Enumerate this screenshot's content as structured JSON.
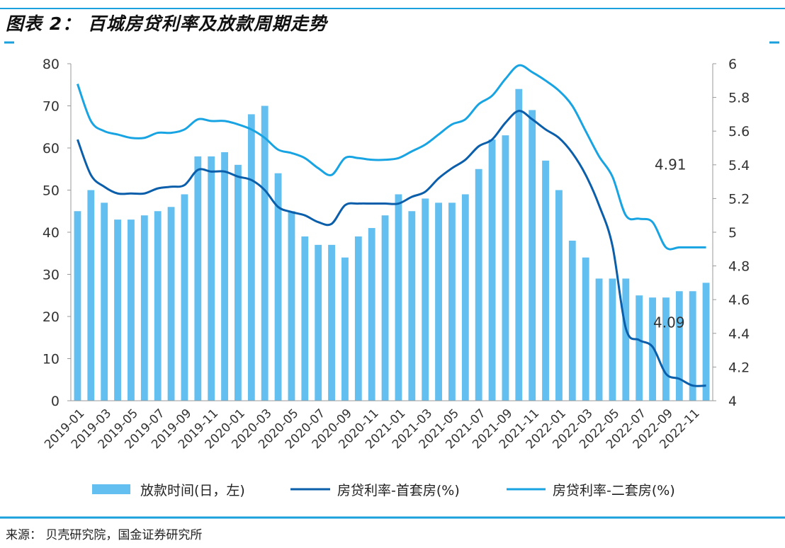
{
  "title": "图表 2：  百城房贷利率及放款周期走势",
  "source": "来源：  贝壳研究院，国金证券研究所",
  "colors": {
    "bar": "#62bff0",
    "first_home": "#0a5eaa",
    "second_home": "#18a4e2",
    "accent_rule": "#1aa0dc"
  },
  "chart_data": {
    "type": "bar",
    "title": "",
    "categories": [
      "2019-01",
      "2019-02",
      "2019-03",
      "2019-04",
      "2019-05",
      "2019-06",
      "2019-07",
      "2019-08",
      "2019-09",
      "2019-10",
      "2019-11",
      "2019-12",
      "2020-01",
      "2020-02",
      "2020-03",
      "2020-04",
      "2020-05",
      "2020-06",
      "2020-07",
      "2020-08",
      "2020-09",
      "2020-10",
      "2020-11",
      "2020-12",
      "2021-01",
      "2021-02",
      "2021-03",
      "2021-04",
      "2021-05",
      "2021-06",
      "2021-07",
      "2021-08",
      "2021-09",
      "2021-10",
      "2021-11",
      "2021-12",
      "2022-01",
      "2022-02",
      "2022-03",
      "2022-04",
      "2022-05",
      "2022-06",
      "2022-07",
      "2022-08",
      "2022-09",
      "2022-10",
      "2022-11",
      "2022-12"
    ],
    "x_tick_labels": [
      "2019-01",
      "2019-03",
      "2019-05",
      "2019-07",
      "2019-09",
      "2019-11",
      "2020-01",
      "2020-03",
      "2020-05",
      "2020-07",
      "2020-09",
      "2020-11",
      "2021-01",
      "2021-03",
      "2021-05",
      "2021-07",
      "2021-09",
      "2021-11",
      "2022-01",
      "2022-03",
      "2022-05",
      "2022-07",
      "2022-09",
      "2022-11"
    ],
    "y_left": {
      "lim": [
        0,
        80
      ],
      "ticks": [
        "0",
        "10",
        "20",
        "30",
        "40",
        "50",
        "60",
        "70",
        "80"
      ]
    },
    "y_right": {
      "lim": [
        4,
        6
      ],
      "ticks": [
        "4",
        "4.2",
        "4.4",
        "4.6",
        "4.8",
        "5",
        "5.2",
        "5.4",
        "5.6",
        "5.8",
        "6"
      ]
    },
    "series": [
      {
        "name": "放款时间(日，左)",
        "type": "bar",
        "axis": "left",
        "values": [
          45,
          50,
          47,
          43,
          43,
          44,
          45,
          46,
          49,
          58,
          58,
          59,
          56,
          68,
          70,
          54,
          45,
          39,
          37,
          37,
          34,
          39,
          41,
          44,
          49,
          45,
          48,
          47,
          47,
          49,
          55,
          62,
          63,
          74,
          69,
          57,
          50,
          38,
          34,
          29,
          29,
          29,
          25,
          24.5,
          24.5,
          26,
          26,
          28
        ]
      },
      {
        "name": "房贷利率-首套房(%)",
        "type": "line",
        "axis": "right",
        "values": [
          5.55,
          5.34,
          5.27,
          5.23,
          5.23,
          5.23,
          5.26,
          5.27,
          5.28,
          5.37,
          5.36,
          5.36,
          5.33,
          5.31,
          5.25,
          5.15,
          5.12,
          5.1,
          5.06,
          5.05,
          5.16,
          5.17,
          5.17,
          5.17,
          5.17,
          5.21,
          5.24,
          5.32,
          5.38,
          5.43,
          5.51,
          5.55,
          5.65,
          5.72,
          5.67,
          5.61,
          5.56,
          5.47,
          5.34,
          5.16,
          4.92,
          4.43,
          4.36,
          4.32,
          4.16,
          4.13,
          4.09,
          4.09
        ]
      },
      {
        "name": "房贷利率-二套房(%)",
        "type": "line",
        "axis": "right",
        "values": [
          5.88,
          5.66,
          5.6,
          5.58,
          5.56,
          5.56,
          5.59,
          5.59,
          5.61,
          5.67,
          5.66,
          5.66,
          5.64,
          5.61,
          5.56,
          5.49,
          5.47,
          5.44,
          5.38,
          5.34,
          5.44,
          5.44,
          5.43,
          5.43,
          5.44,
          5.48,
          5.52,
          5.58,
          5.64,
          5.67,
          5.76,
          5.81,
          5.91,
          5.99,
          5.95,
          5.9,
          5.84,
          5.75,
          5.6,
          5.45,
          5.33,
          5.1,
          5.08,
          5.06,
          4.91,
          4.91,
          4.91,
          4.91
        ]
      }
    ],
    "annotations": [
      {
        "text": "4.91",
        "series": "房贷利率-二套房(%)",
        "category": "2022-12"
      },
      {
        "text": "4.09",
        "series": "房贷利率-首套房(%)",
        "category": "2022-12"
      }
    ],
    "legend_position": "bottom",
    "grid": false
  }
}
